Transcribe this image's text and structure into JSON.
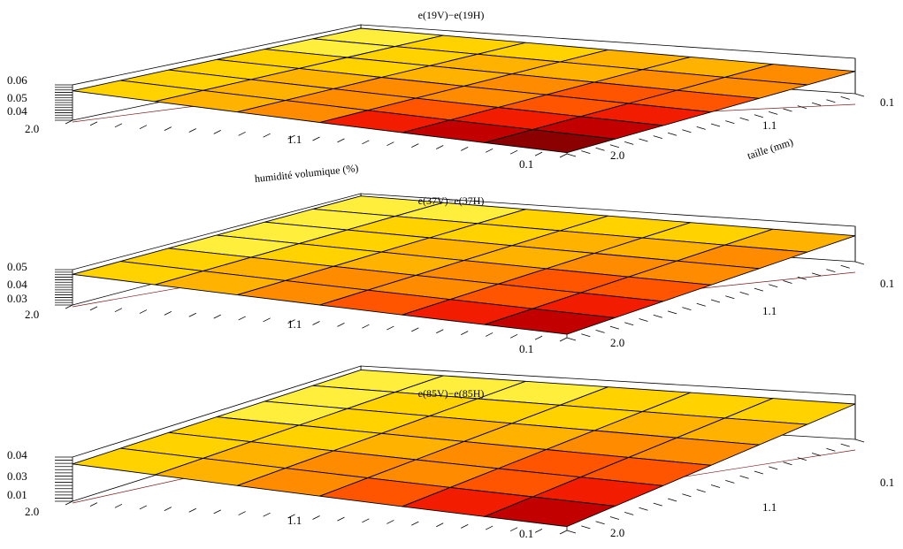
{
  "figure": {
    "colormap_note": "hot",
    "colors": [
      "#5a0000",
      "#8b0000",
      "#c20000",
      "#f21c00",
      "#ff5500",
      "#ff8c00",
      "#ffb300",
      "#ffd200",
      "#ffef3c",
      "#ffff9a"
    ]
  },
  "chart_data": [
    {
      "type": "surface3d",
      "title": "e(19V)−e(19H)",
      "xlabel": "humidité volumique (%)",
      "ylabel": "taille (mm)",
      "zlabel": "",
      "x_ticks": [
        "2.0",
        "1.1",
        "0.1"
      ],
      "y_ticks": [
        "0.1",
        "1.1",
        "2.0"
      ],
      "z_ticks": [
        "0.06",
        "0.05",
        "0.04"
      ],
      "x_range": [
        0.1,
        2.0
      ],
      "y_range": [
        0.1,
        2.0
      ],
      "zlim": [
        0.035,
        0.065
      ],
      "corner_values": {
        "x2.0_y2.0": 0.06,
        "x0.1_y2.0": 0.036,
        "x0.1_y0.1": 0.054,
        "x2.0_y0.1": 0.062
      }
    },
    {
      "type": "surface3d",
      "title": "e(37V)−e(37H)",
      "xlabel": "",
      "ylabel": "",
      "zlabel": "",
      "x_ticks": [
        "2.0",
        "1.1",
        "0.1"
      ],
      "y_ticks": [
        "0.1",
        "1.1",
        "2.0"
      ],
      "z_ticks": [
        "0.05",
        "0.04",
        "0.03"
      ],
      "x_range": [
        0.1,
        2.0
      ],
      "y_range": [
        0.1,
        2.0
      ],
      "zlim": [
        0.025,
        0.055
      ],
      "corner_values": {
        "x2.0_y2.0": 0.051,
        "x0.1_y2.0": 0.028,
        "x0.1_y0.1": 0.047,
        "x2.0_y0.1": 0.053
      }
    },
    {
      "type": "surface3d",
      "title": "e(85V)−e(85H)",
      "xlabel": "",
      "ylabel": "",
      "zlabel": "",
      "x_ticks": [
        "2.0",
        "1.1",
        "0.1"
      ],
      "y_ticks": [
        "0.1",
        "1.1",
        "2.0"
      ],
      "z_ticks": [
        "0.04",
        "0.03",
        "0.01"
      ],
      "x_range": [
        0.1,
        2.0
      ],
      "y_range": [
        0.1,
        2.0
      ],
      "zlim": [
        0.0,
        0.045
      ],
      "corner_values": {
        "x2.0_y2.0": 0.038,
        "x0.1_y2.0": 0.004,
        "x0.1_y0.1": 0.036,
        "x2.0_y0.1": 0.041
      }
    }
  ]
}
